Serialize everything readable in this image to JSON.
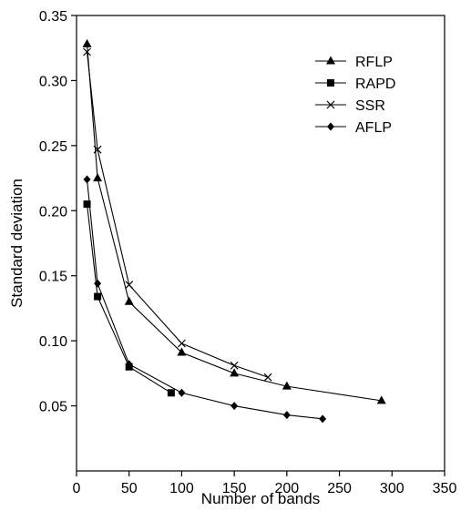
{
  "chart_data": {
    "type": "line",
    "title": "",
    "xlabel": "Number of bands",
    "ylabel": "Standard deviation",
    "xlim": [
      0,
      350
    ],
    "ylim": [
      0,
      0.35
    ],
    "x_ticks": [
      0,
      50,
      100,
      150,
      200,
      250,
      300,
      350
    ],
    "y_ticks": [
      0.05,
      0.1,
      0.15,
      0.2,
      0.25,
      0.3,
      0.35
    ],
    "x_tick_labels": [
      "0",
      "50",
      "100",
      "150",
      "200",
      "250",
      "300",
      "350"
    ],
    "y_tick_labels": [
      "0.05",
      "0.10",
      "0.15",
      "0.20",
      "0.25",
      "0.30",
      "0.35"
    ],
    "grid": false,
    "legend_position": "top-right",
    "series": [
      {
        "name": "RFLP",
        "marker": "triangle",
        "x": [
          10,
          20,
          50,
          100,
          150,
          200,
          290
        ],
        "y": [
          0.328,
          0.225,
          0.13,
          0.091,
          0.075,
          0.065,
          0.054
        ]
      },
      {
        "name": "RAPD",
        "marker": "square",
        "x": [
          10,
          20,
          50,
          90
        ],
        "y": [
          0.205,
          0.134,
          0.08,
          0.06
        ]
      },
      {
        "name": "SSR",
        "marker": "cross",
        "x": [
          10,
          20,
          50,
          100,
          150,
          182
        ],
        "y": [
          0.322,
          0.247,
          0.143,
          0.098,
          0.081,
          0.072
        ]
      },
      {
        "name": "AFLP",
        "marker": "diamond",
        "x": [
          10,
          20,
          50,
          100,
          150,
          200,
          234
        ],
        "y": [
          0.224,
          0.144,
          0.082,
          0.06,
          0.05,
          0.043,
          0.04
        ]
      }
    ]
  }
}
